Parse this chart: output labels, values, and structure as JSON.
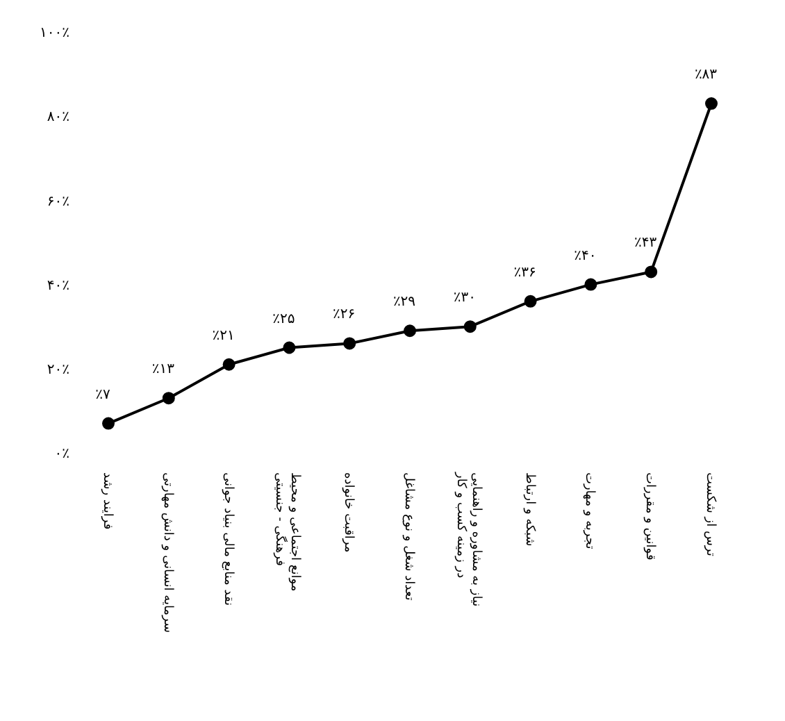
{
  "chart_data": {
    "type": "line",
    "categories": [
      "فرایند رشد",
      "سرمایه انسانی و دانش مهارتی",
      "نقد منابع مالی بنیاد جوانی",
      "موانع اجتماعی و محیط فرهنگی - جنسیتی",
      "مراقبت خانواده",
      "تعداد شغل و نوع مشاغل",
      "نیاز به مشاوره و راهنمایی در زمینه کسب و کار",
      "شبکه و ارتباط",
      "تجربه و مهارت",
      "قوانین و مقررات",
      "ترس از شکست"
    ],
    "series": [
      {
        "color": "#000000",
        "values": [
          7,
          13,
          21,
          25,
          26,
          29,
          30,
          36,
          40,
          43,
          83
        ]
      }
    ],
    "value_labels": [
      "٪۷",
      "٪۱۳",
      "٪۲۱",
      "٪۲۵",
      "٪۲۶",
      "٪۲۹",
      "٪۳۰",
      "٪۳۶",
      "٪۴۰",
      "٪۴۳",
      "٪۸۳"
    ],
    "ylim": [
      0,
      100
    ],
    "yticks": [
      {
        "value": 0,
        "label": "۰٪"
      },
      {
        "value": 20,
        "label": "۲۰٪"
      },
      {
        "value": 40,
        "label": "۴۰٪"
      },
      {
        "value": 60,
        "label": "۶۰٪"
      },
      {
        "value": 80,
        "label": "۸۰٪"
      },
      {
        "value": 100,
        "label": "۱۰۰٪"
      }
    ],
    "grid": false,
    "legend": false,
    "marker": "circle",
    "line_style": "solid"
  }
}
